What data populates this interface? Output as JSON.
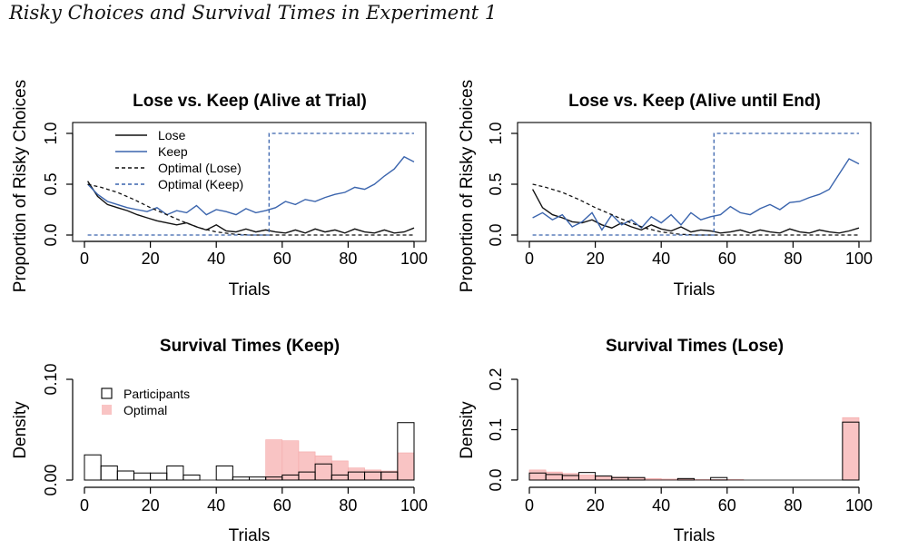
{
  "figure_title": "Risky Choices and Survival Times in Experiment 1",
  "colors": {
    "lose": "#111111",
    "keep": "#3a64ad",
    "optimal_fill": "#f9c4c4",
    "optimal_stroke": "#f4a7a7",
    "participants": "#000000"
  },
  "chart_data": [
    {
      "type": "line",
      "title": "Lose vs. Keep (Alive at Trial)",
      "xlabel": "Trials",
      "ylabel": "Proportion of Risky Choices",
      "xlim": [
        0,
        100
      ],
      "ylim": [
        0,
        1
      ],
      "xticks": [
        "0",
        "20",
        "40",
        "60",
        "80",
        "100"
      ],
      "yticks": [
        "0.0",
        "0.5",
        "1.0"
      ],
      "legend": [
        "Lose",
        "Keep",
        "Optimal (Lose)",
        "Optimal (Keep)"
      ],
      "series": [
        {
          "name": "Lose",
          "style": "solid",
          "color": "#111111",
          "x": [
            1,
            4,
            7,
            10,
            13,
            16,
            19,
            22,
            25,
            28,
            31,
            34,
            37,
            40,
            43,
            46,
            49,
            52,
            55,
            58,
            61,
            64,
            67,
            70,
            73,
            76,
            79,
            82,
            85,
            88,
            91,
            94,
            97,
            100
          ],
          "values": [
            0.53,
            0.38,
            0.3,
            0.27,
            0.24,
            0.2,
            0.17,
            0.14,
            0.12,
            0.1,
            0.12,
            0.08,
            0.05,
            0.1,
            0.04,
            0.03,
            0.06,
            0.03,
            0.05,
            0.03,
            0.02,
            0.05,
            0.02,
            0.06,
            0.03,
            0.05,
            0.02,
            0.06,
            0.03,
            0.02,
            0.05,
            0.02,
            0.03,
            0.07
          ]
        },
        {
          "name": "Keep",
          "style": "solid",
          "color": "#3a64ad",
          "x": [
            1,
            4,
            7,
            10,
            13,
            16,
            19,
            22,
            25,
            28,
            31,
            34,
            37,
            40,
            43,
            46,
            49,
            52,
            55,
            58,
            61,
            64,
            67,
            70,
            73,
            76,
            79,
            82,
            85,
            88,
            91,
            94,
            97,
            100
          ],
          "values": [
            0.5,
            0.4,
            0.33,
            0.3,
            0.27,
            0.25,
            0.23,
            0.27,
            0.2,
            0.24,
            0.22,
            0.29,
            0.2,
            0.25,
            0.23,
            0.2,
            0.26,
            0.22,
            0.24,
            0.27,
            0.33,
            0.3,
            0.35,
            0.33,
            0.37,
            0.4,
            0.42,
            0.47,
            0.45,
            0.5,
            0.58,
            0.65,
            0.77,
            0.72
          ]
        },
        {
          "name": "Optimal (Lose)",
          "style": "dashed",
          "color": "#111111",
          "x": [
            1,
            5,
            10,
            15,
            20,
            25,
            30,
            35,
            40,
            45,
            50,
            55,
            60,
            100
          ],
          "values": [
            0.5,
            0.47,
            0.42,
            0.35,
            0.27,
            0.2,
            0.13,
            0.07,
            0.03,
            0.01,
            0,
            0,
            0,
            0
          ]
        },
        {
          "name": "Optimal (Keep)",
          "style": "dashed",
          "color": "#3a64ad",
          "x": [
            1,
            56,
            56,
            100
          ],
          "values": [
            0,
            0,
            1,
            1
          ]
        }
      ]
    },
    {
      "type": "line",
      "title": "Lose vs. Keep (Alive until End)",
      "xlabel": "Trials",
      "ylabel": "Proportion of Risky Choices",
      "xlim": [
        0,
        100
      ],
      "ylim": [
        0,
        1
      ],
      "xticks": [
        "0",
        "20",
        "40",
        "60",
        "80",
        "100"
      ],
      "yticks": [
        "0.0",
        "0.5",
        "1.0"
      ],
      "series": [
        {
          "name": "Lose",
          "style": "solid",
          "color": "#111111",
          "x": [
            1,
            4,
            7,
            10,
            13,
            16,
            19,
            22,
            25,
            28,
            31,
            34,
            37,
            40,
            43,
            46,
            49,
            52,
            55,
            58,
            61,
            64,
            67,
            70,
            73,
            76,
            79,
            82,
            85,
            88,
            91,
            94,
            97,
            100
          ],
          "values": [
            0.45,
            0.27,
            0.2,
            0.17,
            0.13,
            0.12,
            0.15,
            0.1,
            0.07,
            0.12,
            0.08,
            0.05,
            0.1,
            0.06,
            0.04,
            0.08,
            0.03,
            0.05,
            0.04,
            0.02,
            0.03,
            0.05,
            0.02,
            0.05,
            0.03,
            0.02,
            0.06,
            0.03,
            0.02,
            0.05,
            0.03,
            0.02,
            0.04,
            0.07
          ]
        },
        {
          "name": "Keep",
          "style": "solid",
          "color": "#3a64ad",
          "x": [
            1,
            4,
            7,
            10,
            13,
            16,
            19,
            22,
            25,
            28,
            31,
            34,
            37,
            40,
            43,
            46,
            49,
            52,
            55,
            58,
            61,
            64,
            67,
            70,
            73,
            76,
            79,
            82,
            85,
            88,
            91,
            94,
            97,
            100
          ],
          "values": [
            0.17,
            0.22,
            0.15,
            0.2,
            0.08,
            0.13,
            0.22,
            0.05,
            0.2,
            0.1,
            0.15,
            0.07,
            0.18,
            0.12,
            0.2,
            0.1,
            0.22,
            0.15,
            0.18,
            0.2,
            0.28,
            0.22,
            0.2,
            0.26,
            0.3,
            0.25,
            0.32,
            0.33,
            0.37,
            0.4,
            0.45,
            0.6,
            0.75,
            0.7
          ]
        },
        {
          "name": "Optimal (Lose)",
          "style": "dashed",
          "color": "#111111",
          "x": [
            1,
            5,
            10,
            15,
            20,
            25,
            30,
            35,
            40,
            45,
            50,
            55,
            60,
            100
          ],
          "values": [
            0.5,
            0.47,
            0.42,
            0.35,
            0.27,
            0.2,
            0.13,
            0.07,
            0.03,
            0.01,
            0,
            0,
            0,
            0
          ]
        },
        {
          "name": "Optimal (Keep)",
          "style": "dashed",
          "color": "#3a64ad",
          "x": [
            1,
            56,
            56,
            100
          ],
          "values": [
            0,
            0,
            1,
            1
          ]
        }
      ]
    },
    {
      "type": "bar",
      "title": "Survival Times (Keep)",
      "xlabel": "Trials",
      "ylabel": "Density",
      "xlim": [
        0,
        100
      ],
      "ylim": [
        0,
        0.1
      ],
      "xticks": [
        "0",
        "20",
        "40",
        "60",
        "80",
        "100"
      ],
      "yticks": [
        "0.00",
        "0.10"
      ],
      "legend": [
        "Participants",
        "Optimal"
      ],
      "bin_width": 5,
      "bin_starts": [
        0,
        5,
        10,
        15,
        20,
        25,
        30,
        35,
        40,
        45,
        50,
        55,
        60,
        65,
        70,
        75,
        80,
        85,
        90,
        95
      ],
      "series": [
        {
          "name": "Optimal",
          "values": [
            0,
            0,
            0,
            0,
            0,
            0,
            0,
            0,
            0,
            0,
            0,
            0.04,
            0.039,
            0.028,
            0.024,
            0.019,
            0.012,
            0.01,
            0.009,
            0.027
          ]
        },
        {
          "name": "Participants",
          "values": [
            0.025,
            0.014,
            0.009,
            0.007,
            0.007,
            0.014,
            0.005,
            0,
            0.014,
            0.003,
            0.003,
            0.003,
            0.005,
            0.008,
            0.016,
            0.005,
            0.008,
            0.008,
            0.008,
            0.057
          ]
        }
      ]
    },
    {
      "type": "bar",
      "title": "Survival Times (Lose)",
      "xlabel": "Trials",
      "ylabel": "Density",
      "xlim": [
        0,
        100
      ],
      "ylim": [
        0,
        0.2
      ],
      "xticks": [
        "0",
        "20",
        "40",
        "60",
        "80",
        "100"
      ],
      "yticks": [
        "0.0",
        "0.1",
        "0.2"
      ],
      "bin_width": 5,
      "bin_starts": [
        0,
        5,
        10,
        15,
        20,
        25,
        30,
        35,
        40,
        45,
        50,
        55,
        60,
        65,
        70,
        75,
        80,
        85,
        90,
        95
      ],
      "series": [
        {
          "name": "Optimal",
          "values": [
            0.02,
            0.016,
            0.013,
            0.01,
            0.008,
            0.006,
            0.004,
            0.003,
            0.002,
            0.002,
            0.001,
            0.001,
            0.001,
            0,
            0,
            0,
            0,
            0,
            0,
            0.124
          ]
        },
        {
          "name": "Participants",
          "values": [
            0.014,
            0.011,
            0.009,
            0.015,
            0.008,
            0.005,
            0.005,
            0,
            0,
            0.003,
            0,
            0.005,
            0,
            0,
            0,
            0,
            0,
            0,
            0,
            0.115
          ]
        }
      ]
    }
  ]
}
